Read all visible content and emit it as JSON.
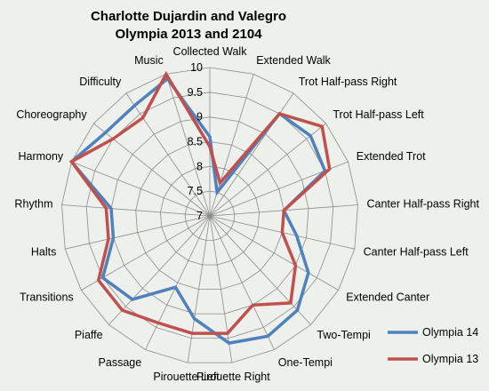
{
  "chart_data": {
    "type": "radar",
    "title": [
      "Charlotte Dujardin and Valegro",
      "Olympia 2013 and 2104"
    ],
    "categories": [
      "Collected Walk",
      "Extended Walk",
      "Trot Half-pass Right",
      "Trot Half-pass Left",
      "Extended Trot",
      "Canter Half-pass Right",
      "Canter Half-pass Left",
      "Extended Canter",
      "Two-Tempi",
      "One-Tempi",
      "Pirouette Right",
      "Pirouette Left",
      "Passage",
      "Piaffe",
      "Transitions",
      "Halts",
      "Rhythm",
      "Harmony",
      "Choreography",
      "Difficulty",
      "Music"
    ],
    "rlim": [
      7,
      10
    ],
    "ticks": [
      "7",
      "7.5",
      "8",
      "8.5",
      "9",
      "9.5",
      "10"
    ],
    "grid": true,
    "legend_position": "bottom-right",
    "series": [
      {
        "name": "Olympia 14",
        "color": "#4f81bd",
        "values": [
          8.6,
          7.5,
          9.5,
          9.6,
          9.5,
          8.5,
          8.8,
          9.3,
          9.6,
          9.7,
          9.6,
          9.1,
          8.6,
          9.3,
          9.5,
          9.0,
          9.0,
          10.0,
          9.7,
          9.7,
          9.9
        ]
      },
      {
        "name": "Olympia 13",
        "color": "#c0504d",
        "values": [
          8.4,
          7.7,
          9.5,
          9.9,
          9.6,
          8.5,
          8.5,
          9.0,
          9.4,
          9.0,
          9.4,
          9.4,
          9.4,
          9.6,
          9.6,
          9.1,
          9.1,
          10.0,
          9.5,
          9.4,
          10.0
        ]
      }
    ]
  }
}
